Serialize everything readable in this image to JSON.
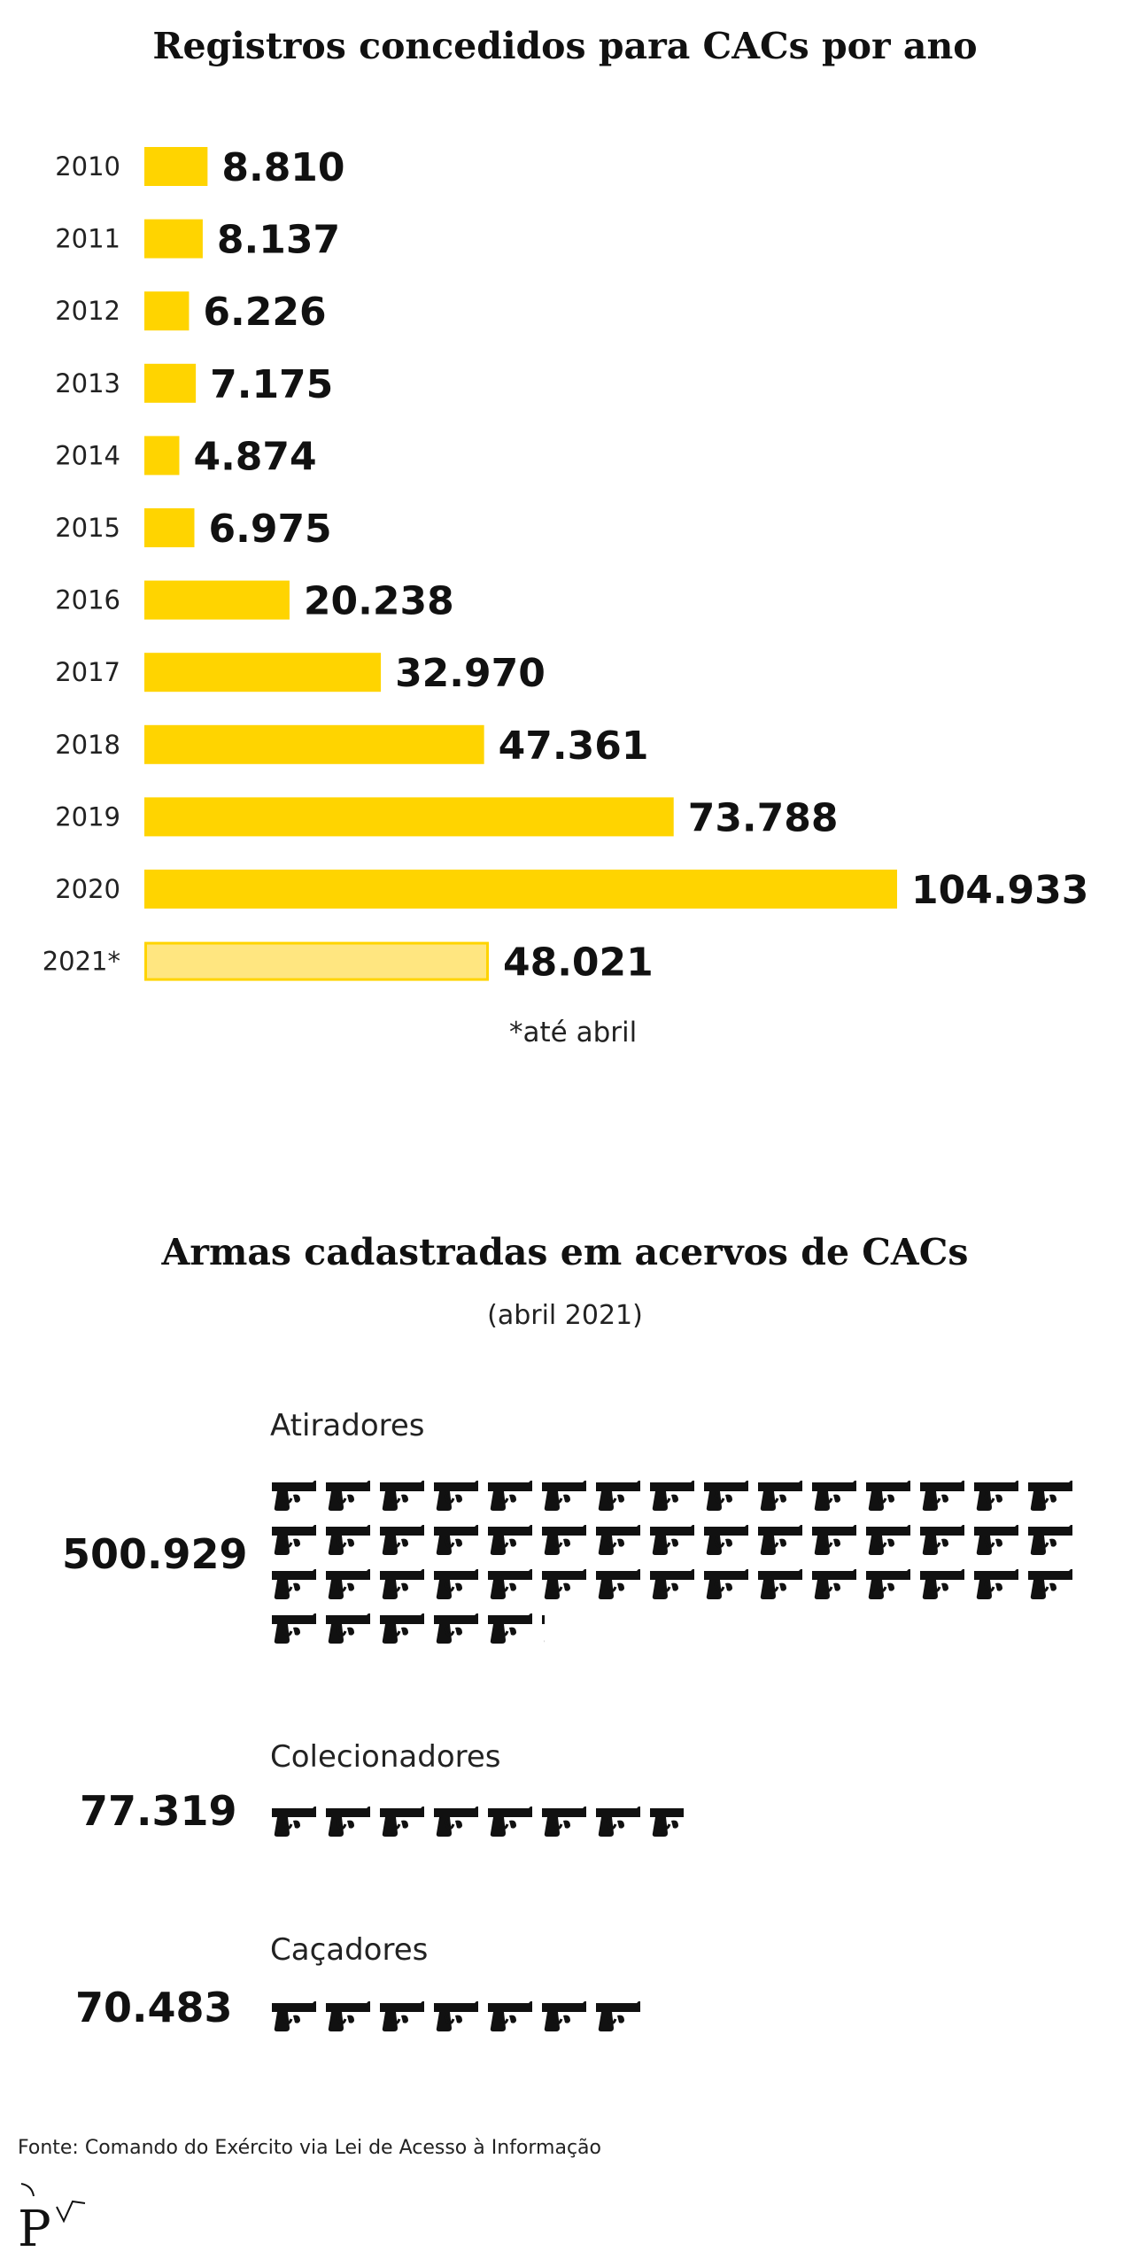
{
  "chart_data": [
    {
      "type": "bar",
      "orientation": "horizontal",
      "title": "Registros concedidos para CACs por ano",
      "categories": [
        "2010",
        "2011",
        "2012",
        "2013",
        "2014",
        "2015",
        "2016",
        "2017",
        "2018",
        "2019",
        "2020",
        "2021*"
      ],
      "values": [
        8810,
        8137,
        6226,
        7175,
        4874,
        6975,
        20238,
        32970,
        47361,
        73788,
        104933,
        48021
      ],
      "value_labels": [
        "8.810",
        "8.137",
        "6.226",
        "7.175",
        "4.874",
        "6.975",
        "20.238",
        "32.970",
        "47.361",
        "73.788",
        "104.933",
        "48.021"
      ],
      "colors": {
        "bar": "#FFD400",
        "partial_bar": "#FFE680",
        "partial_border": "#FFD400"
      },
      "partial_index": 11,
      "footnote": "*até abril",
      "grid": false
    },
    {
      "type": "pictogram",
      "title": "Armas cadastradas em acervos de CACs",
      "subtitle": "(abril 2021)",
      "icon": "pistol-icon",
      "icon_unit": 10000,
      "categories": [
        "Atiradores",
        "Colecionadores",
        "Caçadores"
      ],
      "values": [
        500929,
        77319,
        70483
      ],
      "value_labels": [
        "500.929",
        "77.319",
        "70.483"
      ]
    }
  ],
  "source": "Fonte: Comando do Exército via Lei de Acesso à Informação",
  "logo": "poder360-logo"
}
